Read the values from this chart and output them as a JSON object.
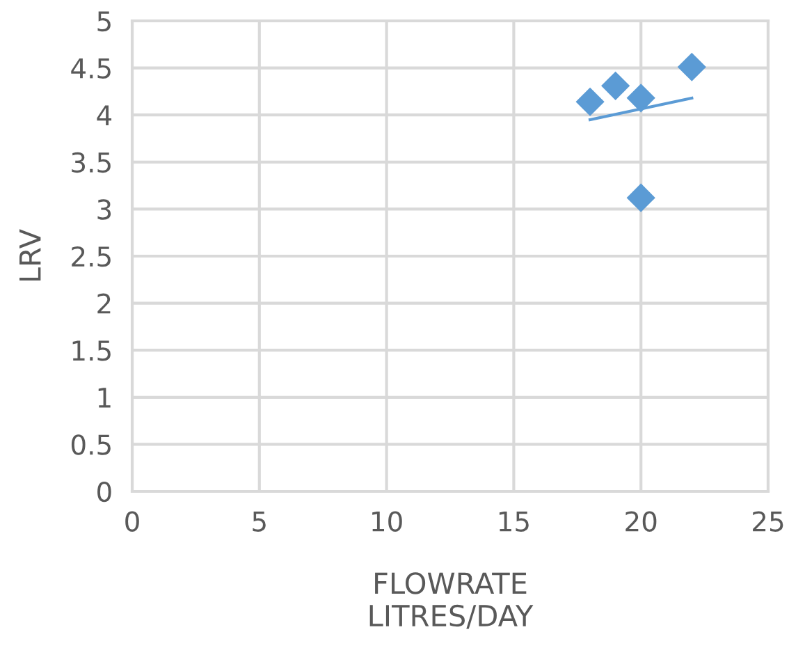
{
  "chart_data": {
    "type": "scatter",
    "xlabel": "FLOWRATE\nLITRES/DAY",
    "ylabel": "LRV",
    "x": [
      18,
      19,
      20,
      20,
      22
    ],
    "series": [
      {
        "color": "#5b9bd5",
        "marker": "diamond",
        "values": [
          4.14,
          4.31,
          4.18,
          3.12,
          4.51
        ]
      },
      {
        "type": "line",
        "color": "#5b9bd5",
        "marker": "none",
        "line_style": "solid",
        "x": [
          18,
          22
        ],
        "values": [
          3.95,
          4.18
        ]
      }
    ],
    "xlim": [
      0,
      25
    ],
    "xticks": [
      0,
      5,
      10,
      15,
      20,
      25
    ],
    "ylim": [
      0,
      5
    ],
    "yticks": [
      0,
      0.5,
      1,
      1.5,
      2,
      2.5,
      3,
      3.5,
      4,
      4.5,
      5
    ],
    "grid": true,
    "legend": false
  }
}
